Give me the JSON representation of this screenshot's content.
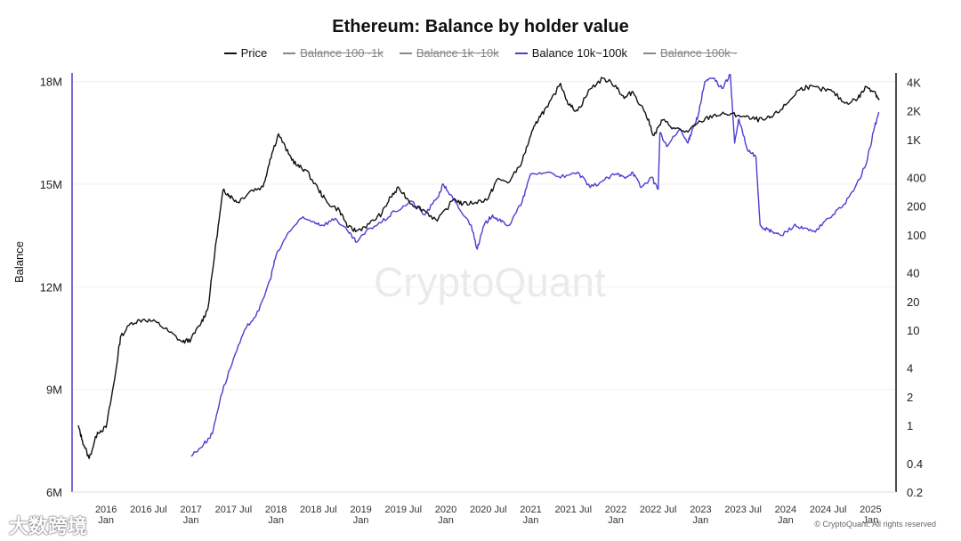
{
  "chart_data": {
    "type": "line",
    "title": "Ethereum: Balance by holder value",
    "ylabel": "Balance",
    "y_left": {
      "ticks": [
        "6M",
        "9M",
        "12M",
        "15M",
        "18M"
      ],
      "tick_values": [
        6,
        9,
        12,
        15,
        18
      ],
      "unit": "million",
      "lim": [
        6,
        18.25
      ]
    },
    "y_right": {
      "scale": "log",
      "ticks": [
        "0.2",
        "0.4",
        "1",
        "2",
        "4",
        "10",
        "20",
        "40",
        "100",
        "200",
        "400",
        "1K",
        "2K",
        "4K"
      ],
      "tick_values": [
        0.2,
        0.4,
        1,
        2,
        4,
        10,
        20,
        40,
        100,
        200,
        400,
        1000,
        2000,
        4000
      ],
      "lim": [
        0.2,
        5000
      ]
    },
    "x_ticks": [
      {
        "label": "2016",
        "sub": "Jan",
        "t": 2016.0
      },
      {
        "label": "2016 Jul",
        "sub": "",
        "t": 2016.5
      },
      {
        "label": "2017",
        "sub": "Jan",
        "t": 2017.0
      },
      {
        "label": "2017 Jul",
        "sub": "",
        "t": 2017.5
      },
      {
        "label": "2018",
        "sub": "Jan",
        "t": 2018.0
      },
      {
        "label": "2018 Jul",
        "sub": "",
        "t": 2018.5
      },
      {
        "label": "2019",
        "sub": "Jan",
        "t": 2019.0
      },
      {
        "label": "2019 Jul",
        "sub": "",
        "t": 2019.5
      },
      {
        "label": "2020",
        "sub": "Jan",
        "t": 2020.0
      },
      {
        "label": "2020 Jul",
        "sub": "",
        "t": 2020.5
      },
      {
        "label": "2021",
        "sub": "Jan",
        "t": 2021.0
      },
      {
        "label": "2021 Jul",
        "sub": "",
        "t": 2021.5
      },
      {
        "label": "2022",
        "sub": "Jan",
        "t": 2022.0
      },
      {
        "label": "2022 Jul",
        "sub": "",
        "t": 2022.5
      },
      {
        "label": "2023",
        "sub": "Jan",
        "t": 2023.0
      },
      {
        "label": "2023 Jul",
        "sub": "",
        "t": 2023.5
      },
      {
        "label": "2024",
        "sub": "Jan",
        "t": 2024.0
      },
      {
        "label": "2024 Jul",
        "sub": "",
        "t": 2024.5
      },
      {
        "label": "2025",
        "sub": "Jan",
        "t": 2025.0
      }
    ],
    "x_range": [
      2015.6,
      2025.3
    ],
    "series": [
      {
        "name": "Price",
        "axis": "right",
        "color": "#111111",
        "visible": true,
        "t": [
          2015.67,
          2015.72,
          2015.8,
          2015.9,
          2016.0,
          2016.1,
          2016.17,
          2016.3,
          2016.45,
          2016.6,
          2016.75,
          2016.9,
          2017.0,
          2017.12,
          2017.2,
          2017.3,
          2017.38,
          2017.45,
          2017.55,
          2017.7,
          2017.85,
          2017.93,
          2018.03,
          2018.15,
          2018.25,
          2018.35,
          2018.5,
          2018.6,
          2018.75,
          2018.85,
          2018.95,
          2019.1,
          2019.25,
          2019.35,
          2019.45,
          2019.6,
          2019.75,
          2019.9,
          2020.1,
          2020.2,
          2020.35,
          2020.5,
          2020.6,
          2020.75,
          2020.9,
          2021.0,
          2021.1,
          2021.2,
          2021.35,
          2021.45,
          2021.55,
          2021.7,
          2021.85,
          2022.0,
          2022.1,
          2022.2,
          2022.35,
          2022.45,
          2022.55,
          2022.7,
          2022.85,
          2023.0,
          2023.15,
          2023.3,
          2023.45,
          2023.6,
          2023.75,
          2023.85,
          2024.0,
          2024.15,
          2024.25,
          2024.4,
          2024.55,
          2024.7,
          2024.85,
          2024.95,
          2025.05,
          2025.1
        ],
        "values": [
          1.0,
          0.7,
          0.45,
          0.85,
          0.95,
          3,
          8.5,
          12,
          13,
          12,
          9.5,
          7.5,
          8,
          12,
          17,
          90,
          300,
          260,
          220,
          290,
          320,
          620,
          1150,
          700,
          530,
          480,
          300,
          220,
          180,
          120,
          110,
          130,
          170,
          250,
          310,
          210,
          180,
          140,
          240,
          210,
          220,
          240,
          380,
          360,
          600,
          1100,
          1750,
          2200,
          3900,
          2300,
          2000,
          3400,
          4400,
          3700,
          2700,
          3200,
          1900,
          1100,
          1600,
          1300,
          1200,
          1550,
          1800,
          1850,
          1800,
          1650,
          1600,
          1750,
          2300,
          3300,
          3600,
          3400,
          3200,
          2400,
          2700,
          3600,
          3200,
          2600
        ]
      },
      {
        "name": "Balance 100~1k",
        "axis": "left",
        "color": "#888888",
        "visible": false,
        "t": [],
        "values": []
      },
      {
        "name": "Balance 1k~10k",
        "axis": "left",
        "color": "#888888",
        "visible": false,
        "t": [],
        "values": []
      },
      {
        "name": "Balance 10k~100k",
        "axis": "left",
        "color": "#4a3fd0",
        "visible": true,
        "t": [
          2017.0,
          2017.15,
          2017.25,
          2017.35,
          2017.5,
          2017.65,
          2017.8,
          2017.93,
          2018.0,
          2018.15,
          2018.3,
          2018.45,
          2018.55,
          2018.7,
          2018.85,
          2018.95,
          2019.1,
          2019.25,
          2019.4,
          2019.6,
          2019.75,
          2019.9,
          2019.97,
          2020.05,
          2020.15,
          2020.3,
          2020.37,
          2020.45,
          2020.55,
          2020.65,
          2020.75,
          2020.9,
          2021.0,
          2021.2,
          2021.4,
          2021.55,
          2021.7,
          2021.85,
          2022.0,
          2022.1,
          2022.2,
          2022.3,
          2022.42,
          2022.5,
          2022.52,
          2022.6,
          2022.75,
          2022.85,
          2022.9,
          2022.97,
          2023.05,
          2023.15,
          2023.25,
          2023.35,
          2023.4,
          2023.45,
          2023.55,
          2023.65,
          2023.7,
          2023.75,
          2023.85,
          2023.95,
          2024.1,
          2024.2,
          2024.35,
          2024.5,
          2024.65,
          2024.8,
          2024.95,
          2025.05,
          2025.1
        ],
        "values": [
          7.05,
          7.4,
          7.7,
          8.8,
          9.9,
          10.8,
          11.3,
          12.2,
          12.9,
          13.6,
          14.0,
          13.9,
          13.8,
          14.0,
          13.6,
          13.3,
          13.7,
          13.9,
          14.2,
          14.5,
          14.1,
          14.6,
          15.0,
          14.7,
          14.3,
          13.8,
          13.1,
          13.8,
          14.1,
          13.9,
          13.8,
          14.5,
          15.3,
          15.35,
          15.2,
          15.35,
          14.9,
          15.1,
          15.3,
          15.2,
          15.35,
          14.9,
          15.2,
          14.85,
          16.5,
          16.1,
          16.6,
          16.2,
          16.6,
          17.0,
          18.0,
          18.1,
          17.8,
          18.2,
          16.2,
          16.9,
          16.0,
          15.8,
          13.8,
          13.7,
          13.6,
          13.5,
          13.8,
          13.7,
          13.6,
          14.0,
          14.3,
          14.8,
          15.6,
          16.7,
          17.1
        ]
      },
      {
        "name": "Balance 100k~",
        "axis": "left",
        "color": "#888888",
        "visible": false,
        "t": [],
        "values": []
      }
    ]
  },
  "watermark": "CryptoQuant",
  "copyright": "© CryptoQuant. All rights reserved",
  "source_logo": "大数跨境"
}
